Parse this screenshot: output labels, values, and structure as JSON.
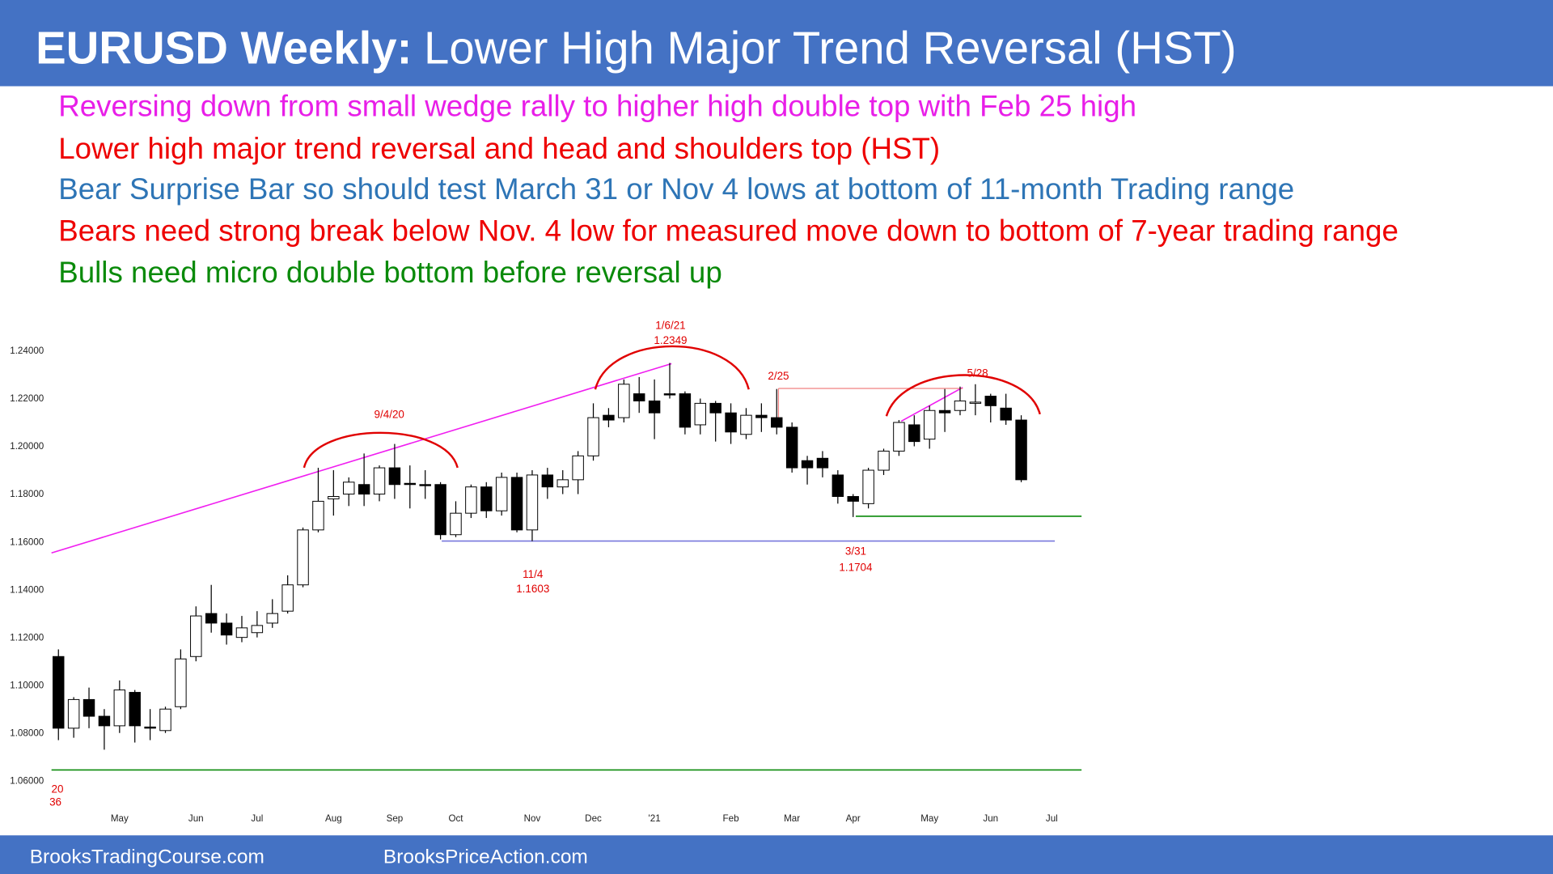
{
  "slide": {
    "title_bold": "EURUSD Weekly:",
    "title_rest": "Lower High Major Trend Reversal (HST)",
    "bullets": [
      {
        "text": "Reversing down from small wedge rally to higher high double top with Feb 25 high",
        "color": "#e81ee8"
      },
      {
        "text": "Lower high major trend reversal and head and shoulders top (HST)",
        "color": "#ee0000"
      },
      {
        "text": "Bear Surprise Bar so should test March 31 or Nov 4 lows at bottom of 11-month Trading range",
        "color": "#2e75b6"
      },
      {
        "text": "Bears need strong break below Nov. 4 low for measured move down to bottom of 7-year trading range",
        "color": "#ee0000"
      },
      {
        "text": "Bulls need micro double bottom before reversal up",
        "color": "#0a8a0a"
      }
    ],
    "footer": [
      "BrooksTradingCourse.com",
      "BrooksPriceAction.com"
    ]
  },
  "chart_data": {
    "type": "candlestick",
    "categories": [
      null,
      null,
      null,
      null,
      "May",
      null,
      null,
      null,
      null,
      "Jun",
      null,
      null,
      null,
      "Jul",
      null,
      null,
      null,
      null,
      "Aug",
      null,
      null,
      null,
      "Sep",
      null,
      null,
      null,
      "Oct",
      null,
      null,
      null,
      null,
      "Nov",
      null,
      null,
      null,
      "Dec",
      null,
      null,
      null,
      "'21",
      null,
      null,
      null,
      null,
      "Feb",
      null,
      null,
      null,
      "Mar",
      null,
      null,
      null,
      "Apr",
      null,
      null,
      null,
      null,
      "May",
      null,
      null,
      null,
      "Jun",
      null,
      null,
      null,
      "Jul"
    ],
    "open": [
      1.112,
      1.082,
      1.094,
      1.087,
      1.083,
      1.097,
      1.0825,
      1.081,
      1.091,
      1.112,
      1.13,
      1.126,
      1.12,
      1.122,
      1.126,
      1.131,
      1.142,
      1.165,
      1.178,
      1.18,
      1.184,
      1.18,
      1.191,
      1.1845,
      1.184,
      1.184,
      1.163,
      1.172,
      1.183,
      1.173,
      1.187,
      1.165,
      1.188,
      1.183,
      1.186,
      1.196,
      1.213,
      1.212,
      1.222,
      1.219,
      1.222,
      1.222,
      1.209,
      1.218,
      1.214,
      1.205,
      1.213,
      1.212,
      1.208,
      1.194,
      1.195,
      1.188,
      1.179,
      1.176,
      1.19,
      1.198,
      1.209,
      1.203,
      1.215,
      1.215,
      1.218,
      1.221,
      1.216,
      1.211,
      null,
      null
    ],
    "high": [
      1.115,
      1.095,
      1.099,
      1.09,
      1.102,
      1.098,
      1.09,
      1.091,
      1.115,
      1.133,
      1.142,
      1.13,
      1.129,
      1.131,
      1.136,
      1.146,
      1.166,
      1.191,
      1.19,
      1.187,
      1.197,
      1.192,
      1.201,
      1.192,
      1.19,
      1.185,
      1.177,
      1.184,
      1.185,
      1.189,
      1.189,
      1.19,
      1.191,
      1.19,
      1.198,
      1.218,
      1.216,
      1.228,
      1.229,
      1.228,
      1.2349,
      1.223,
      1.22,
      1.219,
      1.218,
      1.216,
      1.218,
      1.224,
      1.21,
      1.196,
      1.198,
      1.19,
      1.18,
      1.191,
      1.199,
      1.211,
      1.213,
      1.217,
      1.224,
      1.225,
      1.226,
      1.222,
      1.222,
      1.213,
      null,
      null
    ],
    "low": [
      1.077,
      1.078,
      1.082,
      1.073,
      1.08,
      1.076,
      1.077,
      1.08,
      1.09,
      1.11,
      1.122,
      1.117,
      1.118,
      1.12,
      1.124,
      1.13,
      1.141,
      1.164,
      1.171,
      1.175,
      1.175,
      1.177,
      1.178,
      1.174,
      1.178,
      1.161,
      1.162,
      1.17,
      1.17,
      1.171,
      1.164,
      1.1603,
      1.178,
      1.18,
      1.18,
      1.194,
      1.208,
      1.21,
      1.214,
      1.203,
      1.22,
      1.205,
      1.205,
      1.202,
      1.201,
      1.203,
      1.206,
      1.205,
      1.189,
      1.184,
      1.187,
      1.176,
      1.1704,
      1.174,
      1.188,
      1.196,
      1.2,
      1.199,
      1.206,
      1.213,
      1.213,
      1.21,
      1.209,
      1.185,
      null,
      null
    ],
    "close": [
      1.082,
      1.094,
      1.087,
      1.083,
      1.098,
      1.083,
      1.082,
      1.09,
      1.111,
      1.129,
      1.126,
      1.121,
      1.124,
      1.125,
      1.13,
      1.142,
      1.165,
      1.177,
      1.179,
      1.185,
      1.18,
      1.191,
      1.184,
      1.184,
      1.1835,
      1.163,
      1.172,
      1.183,
      1.173,
      1.187,
      1.165,
      1.188,
      1.183,
      1.186,
      1.196,
      1.212,
      1.211,
      1.226,
      1.219,
      1.214,
      1.2215,
      1.208,
      1.218,
      1.214,
      1.206,
      1.213,
      1.212,
      1.208,
      1.191,
      1.191,
      1.191,
      1.179,
      1.177,
      1.19,
      1.198,
      1.21,
      1.202,
      1.215,
      1.214,
      1.219,
      1.2185,
      1.217,
      1.211,
      1.186,
      null,
      null
    ],
    "up_color": "#ffffff",
    "down_color": "#000000",
    "ylim": [
      1.05,
      1.2458
    ],
    "yticks": [
      {
        "value": 1.06,
        "label": "1.06000"
      },
      {
        "value": 1.08,
        "label": "1.08000"
      },
      {
        "value": 1.1,
        "label": "1.10000"
      },
      {
        "value": 1.12,
        "label": "1.12000"
      },
      {
        "value": 1.14,
        "label": "1.14000"
      },
      {
        "value": 1.16,
        "label": "1.16000"
      },
      {
        "value": 1.18,
        "label": "1.18000"
      },
      {
        "value": 1.2,
        "label": "1.20000"
      },
      {
        "value": 1.22,
        "label": "1.22000"
      },
      {
        "value": 1.24,
        "label": "1.24000"
      }
    ],
    "annotations": [
      "9/4/20",
      "1/6/21",
      "1.2349",
      "2/25",
      "5/28",
      "11/4",
      "1.1603",
      "3/31",
      "1.1704",
      "20",
      "36"
    ]
  }
}
